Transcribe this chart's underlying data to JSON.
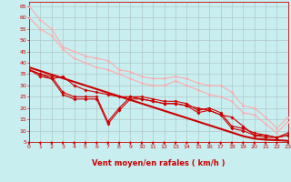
{
  "bg_color": "#c8eef0",
  "grid_color": "#b0c8c8",
  "xlabel": "Vent moyen/en rafales ( km/h )",
  "tick_color": "#cc0000",
  "xlim": [
    0,
    23
  ],
  "ylim": [
    5,
    67
  ],
  "yticks": [
    5,
    10,
    15,
    20,
    25,
    30,
    35,
    40,
    45,
    50,
    55,
    60,
    65
  ],
  "xticks": [
    0,
    1,
    2,
    3,
    4,
    5,
    6,
    7,
    8,
    9,
    10,
    11,
    12,
    13,
    14,
    15,
    16,
    17,
    18,
    19,
    20,
    21,
    22,
    23
  ],
  "series": [
    {
      "x": [
        0,
        1,
        2,
        3,
        4,
        5,
        6,
        7,
        8,
        9,
        10,
        11,
        12,
        13,
        14,
        15,
        16,
        17,
        18,
        19,
        20,
        21,
        22,
        23
      ],
      "y": [
        65,
        59,
        55,
        47,
        45,
        43,
        42,
        41,
        37,
        36,
        34,
        33,
        33,
        34,
        33,
        31,
        30,
        30,
        27,
        21,
        20,
        16,
        11,
        16
      ],
      "color": "#ffaaaa",
      "lw": 0.8,
      "marker": "D",
      "ms": 1.5
    },
    {
      "x": [
        0,
        1,
        2,
        3,
        4,
        5,
        6,
        7,
        8,
        9,
        10,
        11,
        12,
        13,
        14,
        15,
        16,
        17,
        18,
        19,
        20,
        21,
        22,
        23
      ],
      "y": [
        60,
        55,
        52,
        46,
        42,
        40,
        38,
        37,
        35,
        33,
        31,
        30,
        30,
        32,
        30,
        28,
        26,
        25,
        23,
        18,
        17,
        13,
        9,
        14
      ],
      "color": "#ffaaaa",
      "lw": 0.8,
      "marker": "D",
      "ms": 1.5
    },
    {
      "x": [
        0,
        1,
        2,
        3,
        4,
        5,
        6,
        7,
        8,
        9,
        10,
        11,
        12,
        13,
        14,
        15,
        16,
        17,
        18,
        19,
        20,
        21,
        22,
        23
      ],
      "y": [
        38,
        36.4,
        34.8,
        33.2,
        31.6,
        30,
        28.4,
        26.8,
        25.2,
        23.6,
        22,
        20.4,
        18.8,
        17.2,
        15.6,
        14,
        12.4,
        10.8,
        9.2,
        7.6,
        6.5,
        6.0,
        5.8,
        5.5
      ],
      "color": "#cc0000",
      "lw": 1.5,
      "marker": null,
      "ms": 0
    },
    {
      "x": [
        0,
        1,
        2,
        3,
        4,
        5,
        6,
        7,
        8,
        9,
        10,
        11,
        12,
        13,
        14,
        15,
        16,
        17,
        18,
        19,
        20,
        21,
        22,
        23
      ],
      "y": [
        37,
        35,
        34,
        27,
        25,
        25,
        25,
        14,
        20,
        25,
        25,
        24,
        23,
        23,
        22,
        19,
        20,
        18,
        12,
        11,
        9,
        8,
        7,
        9
      ],
      "color": "#cc0000",
      "lw": 0.8,
      "marker": "D",
      "ms": 1.8
    },
    {
      "x": [
        0,
        1,
        2,
        3,
        4,
        5,
        6,
        7,
        8,
        9,
        10,
        11,
        12,
        13,
        14,
        15,
        16,
        17,
        18,
        19,
        20,
        21,
        22,
        23
      ],
      "y": [
        37,
        34,
        33,
        26,
        24,
        24,
        24,
        13,
        19,
        24,
        24,
        23,
        22,
        22,
        21,
        18,
        19,
        17,
        11,
        10,
        8,
        7,
        7,
        8
      ],
      "color": "#cc0000",
      "lw": 0.8,
      "marker": "D",
      "ms": 1.8
    },
    {
      "x": [
        0,
        1,
        2,
        3,
        4,
        5,
        6,
        7,
        8,
        9,
        10,
        11,
        12,
        13,
        14,
        15,
        16,
        17,
        18,
        19,
        20,
        21,
        22,
        23
      ],
      "y": [
        37,
        35,
        33,
        34,
        30,
        28,
        27,
        26,
        25,
        25,
        24,
        23,
        22,
        22,
        21,
        20,
        19,
        17,
        16,
        12,
        8,
        8,
        7,
        8
      ],
      "color": "#cc0000",
      "lw": 0.8,
      "marker": "D",
      "ms": 1.8
    }
  ],
  "arrow_color": "#cc0000",
  "font_color": "#cc0000",
  "label_fontsize": 4.5,
  "xlabel_fontsize": 6.0
}
